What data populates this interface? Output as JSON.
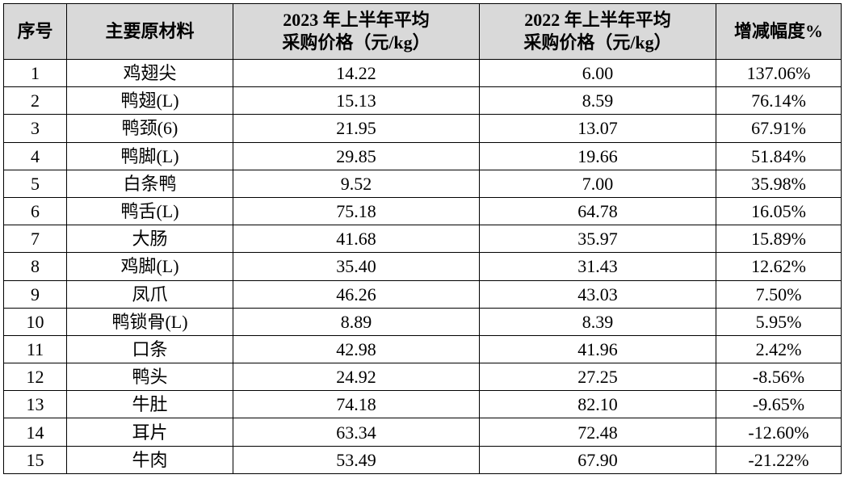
{
  "table": {
    "header": [
      "序号",
      "主要原材料",
      "2023 年上半年平均\n采购价格（元/kg）",
      "2022 年上半年平均\n采购价格（元/kg）",
      "增减幅度%"
    ],
    "rows": [
      [
        "1",
        "鸡翅尖",
        "14.22",
        "6.00",
        "137.06%"
      ],
      [
        "2",
        "鸭翅(L)",
        "15.13",
        "8.59",
        "76.14%"
      ],
      [
        "3",
        "鸭颈(6)",
        "21.95",
        "13.07",
        "67.91%"
      ],
      [
        "4",
        "鸭脚(L)",
        "29.85",
        "19.66",
        "51.84%"
      ],
      [
        "5",
        "白条鸭",
        "9.52",
        "7.00",
        "35.98%"
      ],
      [
        "6",
        "鸭舌(L)",
        "75.18",
        "64.78",
        "16.05%"
      ],
      [
        "7",
        "大肠",
        "41.68",
        "35.97",
        "15.89%"
      ],
      [
        "8",
        "鸡脚(L)",
        "35.40",
        "31.43",
        "12.62%"
      ],
      [
        "9",
        "凤爪",
        "46.26",
        "43.03",
        "7.50%"
      ],
      [
        "10",
        "鸭锁骨(L)",
        "8.89",
        "8.39",
        "5.95%"
      ],
      [
        "11",
        "口条",
        "42.98",
        "41.96",
        "2.42%"
      ],
      [
        "12",
        "鸭头",
        "24.92",
        "27.25",
        "-8.56%"
      ],
      [
        "13",
        "牛肚",
        "74.18",
        "82.10",
        "-9.65%"
      ],
      [
        "14",
        "耳片",
        "63.34",
        "72.48",
        "-12.60%"
      ],
      [
        "15",
        "牛肉",
        "53.49",
        "67.90",
        "-21.22%"
      ]
    ]
  }
}
